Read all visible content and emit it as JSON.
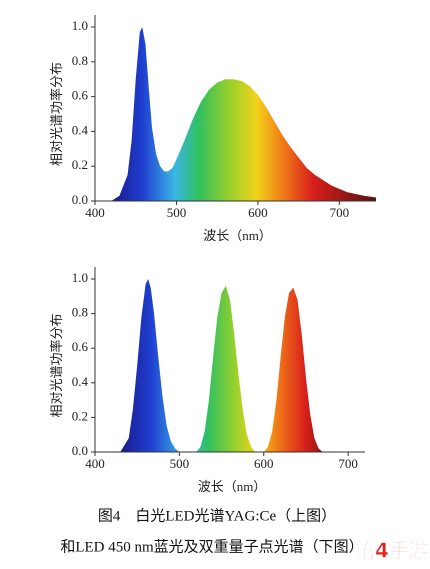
{
  "chart_data": [
    {
      "type": "area",
      "y_label": "相对光谱功率分布",
      "x_label": "波长（nm）",
      "x": [
        420,
        430,
        440,
        445,
        450,
        455,
        458,
        462,
        466,
        470,
        475,
        480,
        485,
        490,
        495,
        500,
        510,
        520,
        530,
        540,
        550,
        560,
        570,
        580,
        590,
        600,
        610,
        620,
        630,
        640,
        650,
        660,
        670,
        680,
        690,
        700,
        710,
        720,
        730,
        745
      ],
      "values": [
        0,
        0.03,
        0.15,
        0.35,
        0.7,
        0.97,
        1.0,
        0.9,
        0.65,
        0.42,
        0.27,
        0.2,
        0.17,
        0.17,
        0.19,
        0.24,
        0.35,
        0.47,
        0.57,
        0.64,
        0.68,
        0.7,
        0.7,
        0.69,
        0.66,
        0.61,
        0.54,
        0.46,
        0.38,
        0.31,
        0.25,
        0.19,
        0.15,
        0.12,
        0.09,
        0.07,
        0.05,
        0.04,
        0.03,
        0.02
      ],
      "xlim": [
        400,
        745
      ],
      "xticks": [
        400,
        500,
        600,
        700
      ],
      "ylim": [
        0,
        1
      ],
      "yticks": [
        {
          "value": 0,
          "label": "0.0"
        },
        0.2,
        0.4,
        0.6,
        0.8,
        {
          "value": 1,
          "label": "1.0"
        }
      ]
    },
    {
      "type": "area",
      "y_label": "相对光谱功率分布",
      "x_label": "波长（nm）",
      "x": [
        430,
        440,
        445,
        450,
        455,
        460,
        463,
        466,
        470,
        475,
        480,
        485,
        490,
        495,
        500,
        520,
        525,
        530,
        535,
        540,
        545,
        550,
        555,
        560,
        565,
        570,
        575,
        580,
        585,
        590,
        600,
        605,
        610,
        615,
        620,
        625,
        630,
        635,
        640,
        645,
        650,
        655,
        660,
        665,
        670
      ],
      "values": [
        0,
        0.08,
        0.25,
        0.5,
        0.78,
        0.97,
        1.0,
        0.95,
        0.8,
        0.55,
        0.32,
        0.15,
        0.06,
        0.02,
        0,
        0,
        0.03,
        0.12,
        0.3,
        0.55,
        0.78,
        0.92,
        0.96,
        0.88,
        0.68,
        0.45,
        0.25,
        0.1,
        0.03,
        0,
        0,
        0.03,
        0.12,
        0.3,
        0.55,
        0.78,
        0.92,
        0.95,
        0.88,
        0.68,
        0.43,
        0.22,
        0.08,
        0.02,
        0
      ],
      "xlim": [
        400,
        720
      ],
      "xticks": [
        400,
        500,
        600,
        700
      ],
      "ylim": [
        0,
        1
      ],
      "yticks": [
        {
          "value": 0,
          "label": "0.0"
        },
        0.2,
        0.4,
        0.6,
        0.8,
        {
          "value": 1,
          "label": "1.0"
        }
      ]
    }
  ],
  "caption": [
    "图4　白光LED光谱YAG:Ce（上图）",
    "和LED 450 nm蓝光及双重量子点光谱（下图）"
  ],
  "watermark": "第4手游"
}
